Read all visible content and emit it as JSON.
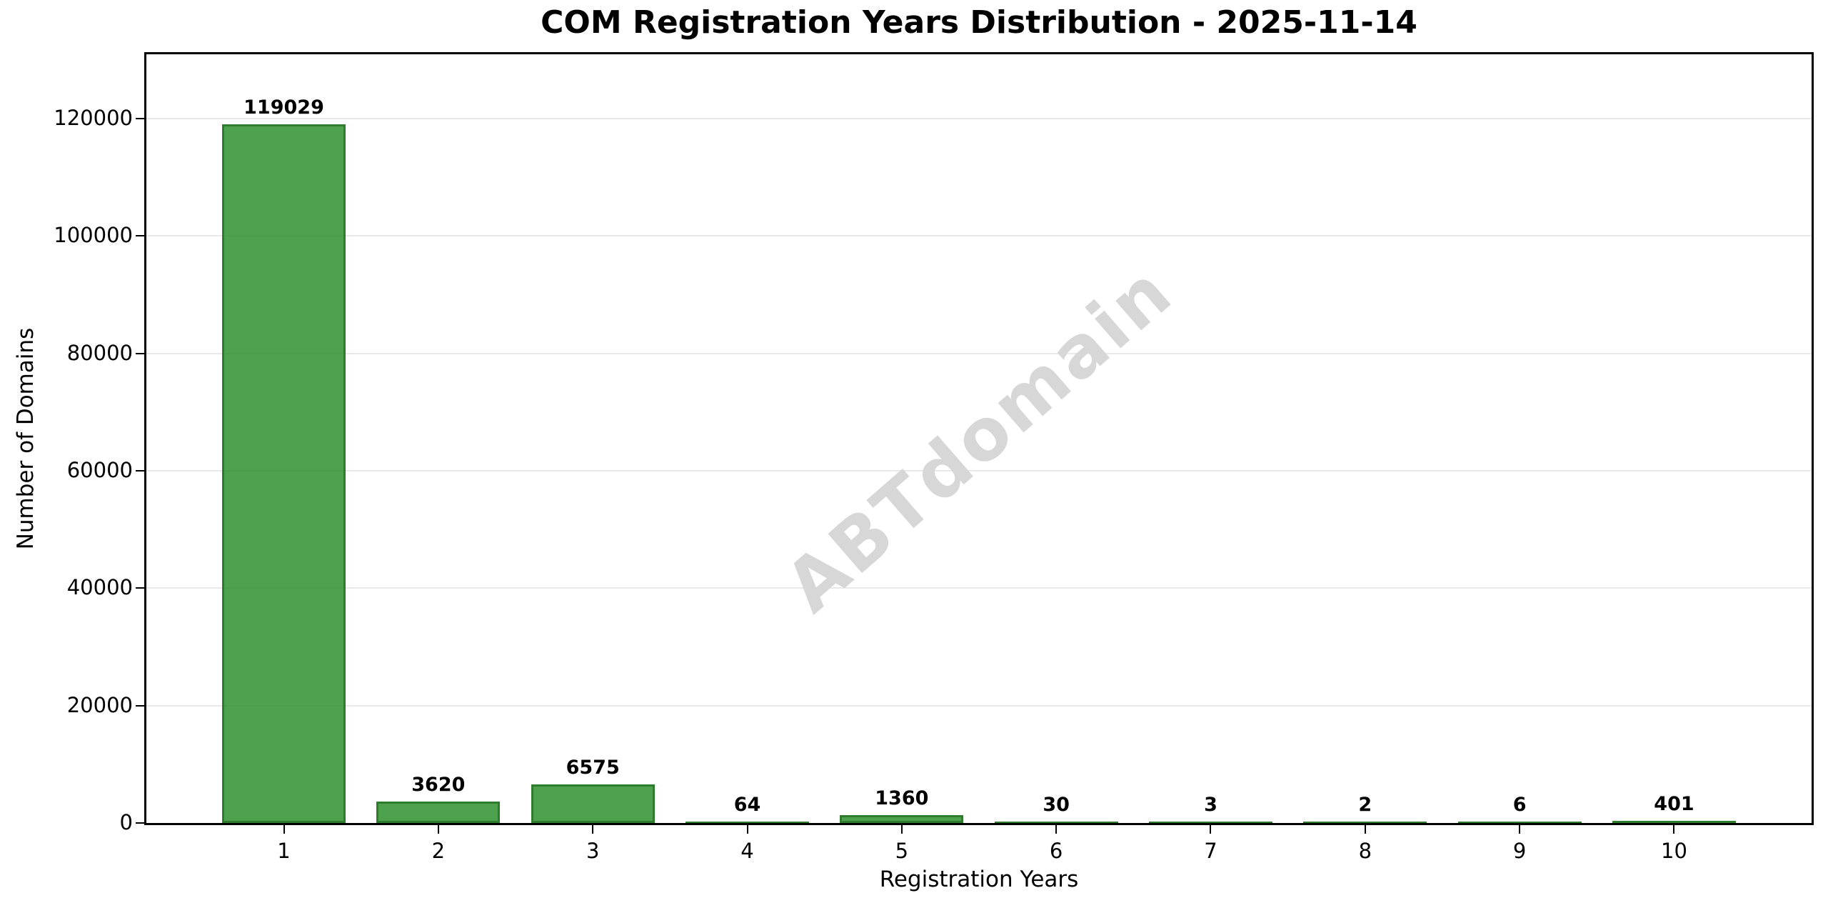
{
  "chart_data": {
    "type": "bar",
    "title": "COM Registration Years Distribution - 2025-11-14",
    "xlabel": "Registration Years",
    "ylabel": "Number of Domains",
    "categories": [
      "1",
      "2",
      "3",
      "4",
      "5",
      "6",
      "7",
      "8",
      "9",
      "10"
    ],
    "values": [
      119029,
      3620,
      6575,
      64,
      1360,
      30,
      3,
      2,
      6,
      401
    ],
    "value_labels": [
      "119029",
      "3620",
      "6575",
      "64",
      "1360",
      "30",
      "3",
      "2",
      "6",
      "401"
    ],
    "yticks": [
      0,
      20000,
      40000,
      60000,
      80000,
      100000,
      120000
    ],
    "ylim": [
      0,
      130932
    ],
    "xlim": [
      0.11,
      10.89
    ],
    "grid": "horizontal",
    "legend": "none",
    "watermark": "ABTdomain",
    "colors": {
      "bar_fill": "rgba(34,139,34,0.8)",
      "bar_edge": "#2f7c2f",
      "grid": "#e9e9e9",
      "spine": "#000000",
      "text": "#000000",
      "watermark": "#d7d7d7"
    }
  }
}
